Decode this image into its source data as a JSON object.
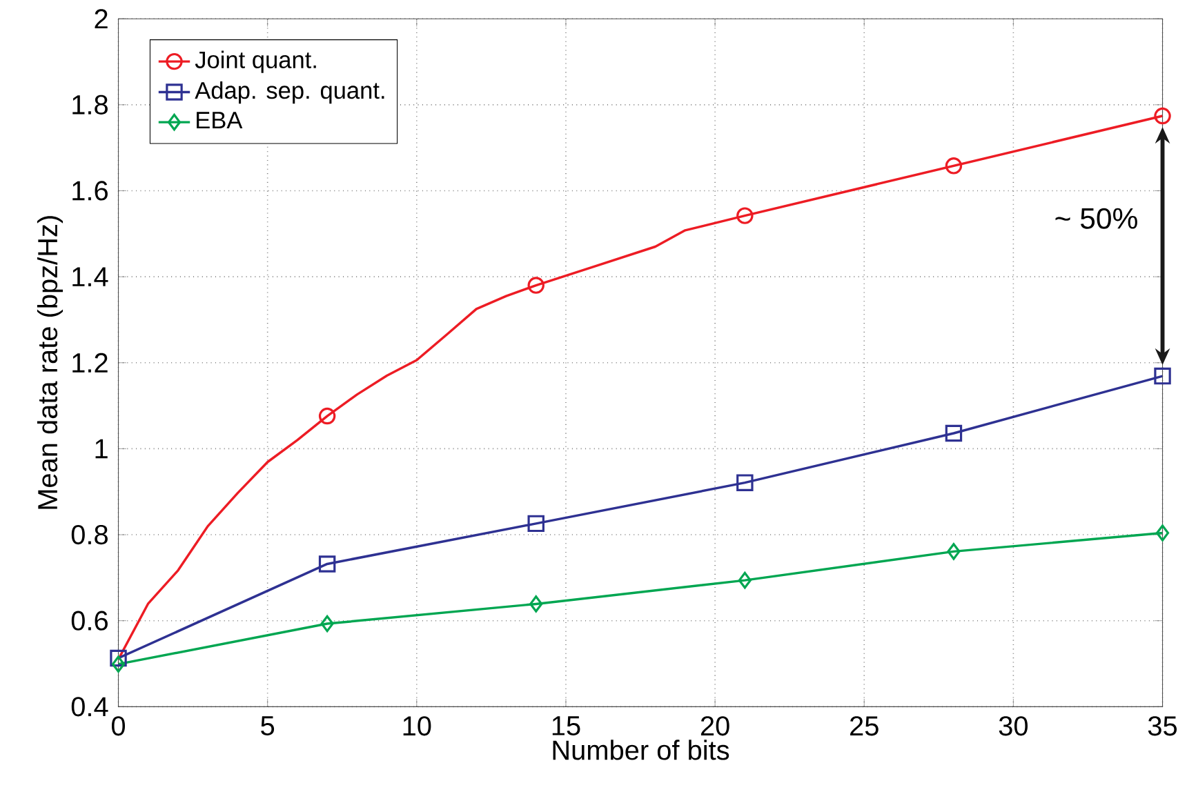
{
  "chart_data": {
    "type": "line",
    "xlabel": "Number of bits",
    "ylabel": "Mean data rate (bpz/Hz)",
    "xlim": [
      0,
      35
    ],
    "ylim": [
      0.4,
      2
    ],
    "xticks": [
      0,
      5,
      10,
      15,
      20,
      25,
      30,
      35
    ],
    "yticks": [
      0.4,
      0.6,
      0.8,
      1,
      1.2,
      1.4,
      1.6,
      1.8,
      2
    ],
    "grid": true,
    "legend": "top left",
    "line_style": "solid",
    "series": [
      {
        "color": "#ed1c24",
        "marker": "none",
        "x": [
          0,
          1,
          2,
          3,
          4,
          5,
          6,
          7,
          8,
          9,
          10,
          11,
          12,
          13,
          14,
          16,
          18,
          19,
          21,
          28,
          35
        ],
        "values": [
          0.51,
          0.64,
          0.717,
          0.82,
          0.897,
          0.969,
          1.02,
          1.076,
          1.126,
          1.17,
          1.206,
          1.265,
          1.325,
          1.355,
          1.38,
          1.425,
          1.47,
          1.508,
          1.542,
          1.658,
          1.774
        ]
      },
      {
        "name": "Joint quant.",
        "type": "scatter",
        "color": "#ed1c24",
        "marker": "circle",
        "x": [
          7,
          14,
          21,
          28,
          35
        ],
        "values": [
          1.076,
          1.38,
          1.542,
          1.658,
          1.774
        ]
      },
      {
        "name": "Adap. sep. quant.",
        "color": "#2e3192",
        "marker": "square",
        "x": [
          0,
          7,
          14,
          21,
          28,
          35
        ],
        "values": [
          0.513,
          0.732,
          0.826,
          0.921,
          1.036,
          1.169
        ]
      },
      {
        "name": "EBA",
        "color": "#00a651",
        "marker": "diamond",
        "x": [
          0,
          7,
          14,
          21,
          28,
          35
        ],
        "values": [
          0.499,
          0.593,
          0.639,
          0.694,
          0.761,
          0.804
        ]
      }
    ],
    "annotations": [
      "~ 50%"
    ]
  }
}
